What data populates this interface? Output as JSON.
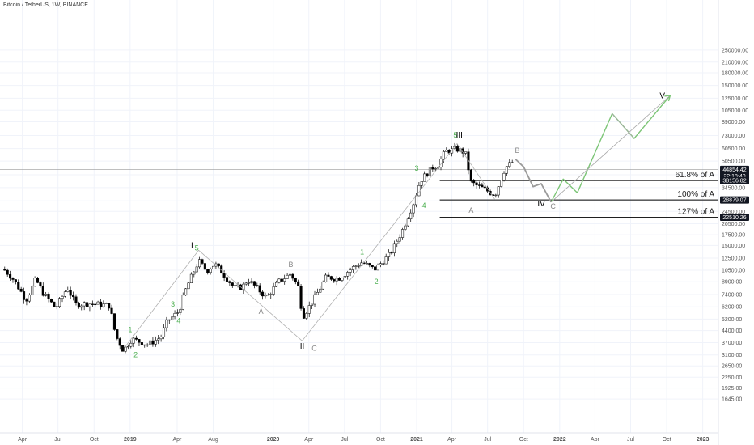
{
  "header": {
    "symbol": "Bitcoin / TetherUS, 1W, BINANCE"
  },
  "colors": {
    "bg": "#ffffff",
    "grid": "#f0f3fa",
    "candle": "#000000",
    "wave_gray": "#aaaaaa",
    "wave_gray_label": "#888888",
    "wave_green": "#7cc576",
    "wave_green_label": "#4caf50",
    "level_line": "#000000",
    "price_tag_bg": "#131722",
    "price_tag_text": "#ffffff",
    "axis_text": "#555555"
  },
  "chart_data": {
    "type": "candlestick",
    "title": "Bitcoin / TetherUS, 1W, BINANCE",
    "y_scale": "log",
    "x_ticks": [
      "Apr",
      "Jul",
      "Oct",
      "2019",
      "Apr",
      "Aug",
      "2020",
      "Apr",
      "Jul",
      "Oct",
      "2021",
      "Apr",
      "Jul",
      "Oct",
      "2022",
      "Apr",
      "Jul",
      "Oct",
      "2023"
    ],
    "x_tick_dates": [
      "2018-04-01",
      "2018-07-01",
      "2018-10-01",
      "2019-01-01",
      "2019-05-01",
      "2019-08-01",
      "2020-01-01",
      "2020-04-01",
      "2020-07-01",
      "2020-10-01",
      "2021-01-01",
      "2021-04-01",
      "2021-07-01",
      "2021-10-01",
      "2022-01-01",
      "2022-04-01",
      "2022-07-01",
      "2022-10-01",
      "2023-01-01"
    ],
    "y_ticks": [
      "250000.00",
      "210000.00",
      "180000.00",
      "150000.00",
      "125000.00",
      "105000.00",
      "89000.00",
      "73000.00",
      "60500.00",
      "50500.00",
      "41500.00",
      "34500.00",
      "28500.00",
      "24500.00",
      "20500.00",
      "17500.00",
      "15000.00",
      "12500.00",
      "10500.00",
      "8900.00",
      "7400.00",
      "6200.00",
      "5200.00",
      "4400.00",
      "3700.00",
      "3100.00",
      "2650.00",
      "2250.00",
      "1925.00",
      "1645.00"
    ],
    "y_tick_values": [
      250000,
      210000,
      180000,
      150000,
      125000,
      105000,
      89000,
      73000,
      60500,
      50500,
      41500,
      34500,
      28500,
      24500,
      20500,
      17500,
      15000,
      12500,
      10500,
      8900,
      7400,
      6200,
      5200,
      4400,
      3700,
      3100,
      2650,
      2250,
      1925,
      1645
    ],
    "price_tags": [
      {
        "label": "44854.42",
        "sublabel": "22:18:40",
        "value": 44854.42
      },
      {
        "label": "38156.82",
        "value": 38156.82
      },
      {
        "label": "28879.07",
        "value": 28879.07
      },
      {
        "label": "22510.26",
        "value": 22510.26
      }
    ],
    "fib_levels": [
      {
        "label": "61.8% of A",
        "value": 38156.82
      },
      {
        "label": "100% of A",
        "value": 28879.07
      },
      {
        "label": "127% of A",
        "value": 22510.26
      }
    ],
    "current_price_line": 44854.42,
    "wave_labels": [
      {
        "text": "1",
        "date": "2019-01-01",
        "price": 4300,
        "style": "green"
      },
      {
        "text": "2",
        "date": "2019-01-15",
        "price": 3000,
        "style": "green"
      },
      {
        "text": "3",
        "date": "2019-04-20",
        "price": 6200,
        "style": "green"
      },
      {
        "text": "4",
        "date": "2019-05-05",
        "price": 4900,
        "style": "green"
      },
      {
        "text": "5",
        "date": "2019-06-20",
        "price": 14000,
        "style": "green"
      },
      {
        "text": "I",
        "date": "2019-06-08",
        "price": 14500,
        "style": "black"
      },
      {
        "text": "A",
        "date": "2019-12-01",
        "price": 5600,
        "style": "gray"
      },
      {
        "text": "B",
        "date": "2020-02-15",
        "price": 11000,
        "style": "gray"
      },
      {
        "text": "II",
        "date": "2020-03-15",
        "price": 3400,
        "style": "black"
      },
      {
        "text": "C",
        "date": "2020-04-15",
        "price": 3300,
        "style": "gray"
      },
      {
        "text": "1",
        "date": "2020-08-15",
        "price": 13200,
        "style": "green"
      },
      {
        "text": "2",
        "date": "2020-09-20",
        "price": 8600,
        "style": "green"
      },
      {
        "text": "3",
        "date": "2021-01-01",
        "price": 44000,
        "style": "green"
      },
      {
        "text": "4",
        "date": "2021-01-20",
        "price": 25800,
        "style": "green"
      },
      {
        "text": "5",
        "date": "2021-04-10",
        "price": 71000,
        "style": "green"
      },
      {
        "text": "III",
        "date": "2021-04-20",
        "price": 71000,
        "style": "black"
      },
      {
        "text": "A",
        "date": "2021-05-20",
        "price": 24000,
        "style": "gray"
      },
      {
        "text": "B",
        "date": "2021-09-15",
        "price": 57000,
        "style": "gray"
      },
      {
        "text": "IV",
        "date": "2021-11-15",
        "price": 26300,
        "style": "black"
      },
      {
        "text": "C",
        "date": "2021-12-15",
        "price": 25500,
        "style": "gray"
      },
      {
        "text": "V",
        "date": "2022-09-20",
        "price": 125000,
        "style": "black"
      }
    ],
    "wave_paths": [
      {
        "style": "gray",
        "points": [
          [
            "2018-12-20",
            3500
          ],
          [
            "2019-06-25",
            14000
          ],
          [
            "2020-03-15",
            3800
          ],
          [
            "2021-04-14",
            65000
          ],
          [
            "2021-07-20",
            29000
          ]
        ]
      },
      {
        "style": "gray_projection",
        "points": [
          [
            "2021-09-10",
            52000
          ],
          [
            "2021-10-01",
            46500
          ],
          [
            "2021-10-25",
            35000
          ],
          [
            "2021-11-15",
            36500
          ],
          [
            "2021-12-10",
            28000
          ]
        ]
      },
      {
        "style": "green_projection",
        "points": [
          [
            "2021-12-10",
            28000
          ],
          [
            "2022-01-10",
            39000
          ],
          [
            "2022-02-15",
            32000
          ],
          [
            "2022-05-15",
            100000
          ],
          [
            "2022-07-10",
            70000
          ],
          [
            "2022-10-10",
            130000
          ]
        ]
      },
      {
        "style": "gray_thin",
        "points": [
          [
            "2022-05-15",
            100000
          ],
          [
            "2022-07-10",
            70000
          ]
        ]
      },
      {
        "style": "gray_thin",
        "points": [
          [
            "2021-12-10",
            28000
          ],
          [
            "2022-10-10",
            130000
          ]
        ]
      }
    ],
    "candle_anchors": [
      [
        "2018-02-15",
        10500
      ],
      [
        "2018-03-05",
        9500
      ],
      [
        "2018-03-25",
        8000
      ],
      [
        "2018-04-10",
        6800
      ],
      [
        "2018-05-05",
        9200
      ],
      [
        "2018-05-25",
        7500
      ],
      [
        "2018-06-25",
        6100
      ],
      [
        "2018-07-25",
        8200
      ],
      [
        "2018-08-15",
        6400
      ],
      [
        "2018-09-15",
        6500
      ],
      [
        "2018-10-20",
        6400
      ],
      [
        "2018-11-10",
        6300
      ],
      [
        "2018-11-25",
        4100
      ],
      [
        "2018-12-15",
        3300
      ],
      [
        "2019-01-05",
        3900
      ],
      [
        "2019-02-15",
        3600
      ],
      [
        "2019-03-20",
        4000
      ],
      [
        "2019-04-05",
        5000
      ],
      [
        "2019-05-05",
        5800
      ],
      [
        "2019-05-25",
        8200
      ],
      [
        "2019-06-25",
        12000
      ],
      [
        "2019-07-15",
        10400
      ],
      [
        "2019-08-05",
        11500
      ],
      [
        "2019-08-25",
        10100
      ],
      [
        "2019-09-25",
        8100
      ],
      [
        "2019-10-15",
        8300
      ],
      [
        "2019-10-28",
        9200
      ],
      [
        "2019-12-15",
        7100
      ],
      [
        "2020-01-15",
        8900
      ],
      [
        "2020-02-15",
        10000
      ],
      [
        "2020-03-08",
        8000
      ],
      [
        "2020-03-15",
        5300
      ],
      [
        "2020-04-15",
        7000
      ],
      [
        "2020-05-15",
        9500
      ],
      [
        "2020-06-15",
        9300
      ],
      [
        "2020-07-25",
        11000
      ],
      [
        "2020-08-15",
        11800
      ],
      [
        "2020-09-15",
        10600
      ],
      [
        "2020-10-25",
        13200
      ],
      [
        "2020-11-25",
        18500
      ],
      [
        "2020-12-25",
        28000
      ],
      [
        "2021-01-10",
        38000
      ],
      [
        "2021-02-10",
        46000
      ],
      [
        "2021-02-25",
        48000
      ],
      [
        "2021-03-15",
        58000
      ],
      [
        "2021-04-14",
        60000
      ],
      [
        "2021-05-05",
        57000
      ],
      [
        "2021-05-20",
        37000
      ],
      [
        "2021-06-20",
        34000
      ],
      [
        "2021-07-20",
        31000
      ],
      [
        "2021-08-15",
        46000
      ],
      [
        "2021-09-05",
        50000
      ]
    ]
  }
}
